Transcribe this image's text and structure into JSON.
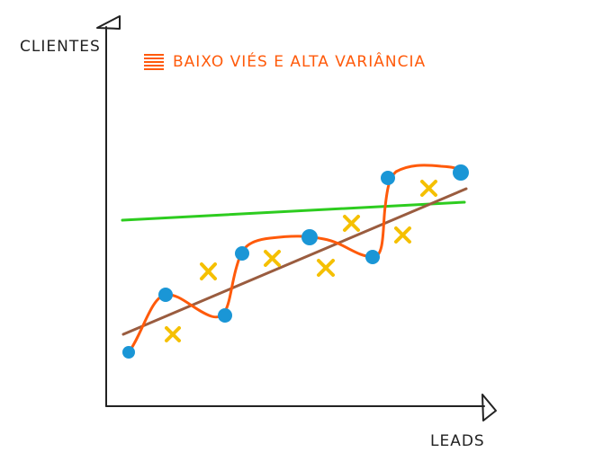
{
  "labels": {
    "y_axis": "Clientes",
    "x_axis": "Leads"
  },
  "legend": {
    "text": "Baixo Viés e Alta Variância",
    "color": "#ff5a0a"
  },
  "colors": {
    "axis": "#222222",
    "blue_points": "#1a96d6",
    "yellow_x": "#f5c000",
    "overfit_curve": "#ff5a0a",
    "regression_line": "#9a5c3f",
    "flat_line": "#2dcc1f"
  },
  "icons": {
    "points": "blue-dot",
    "x_marks": "yellow-cross"
  }
}
